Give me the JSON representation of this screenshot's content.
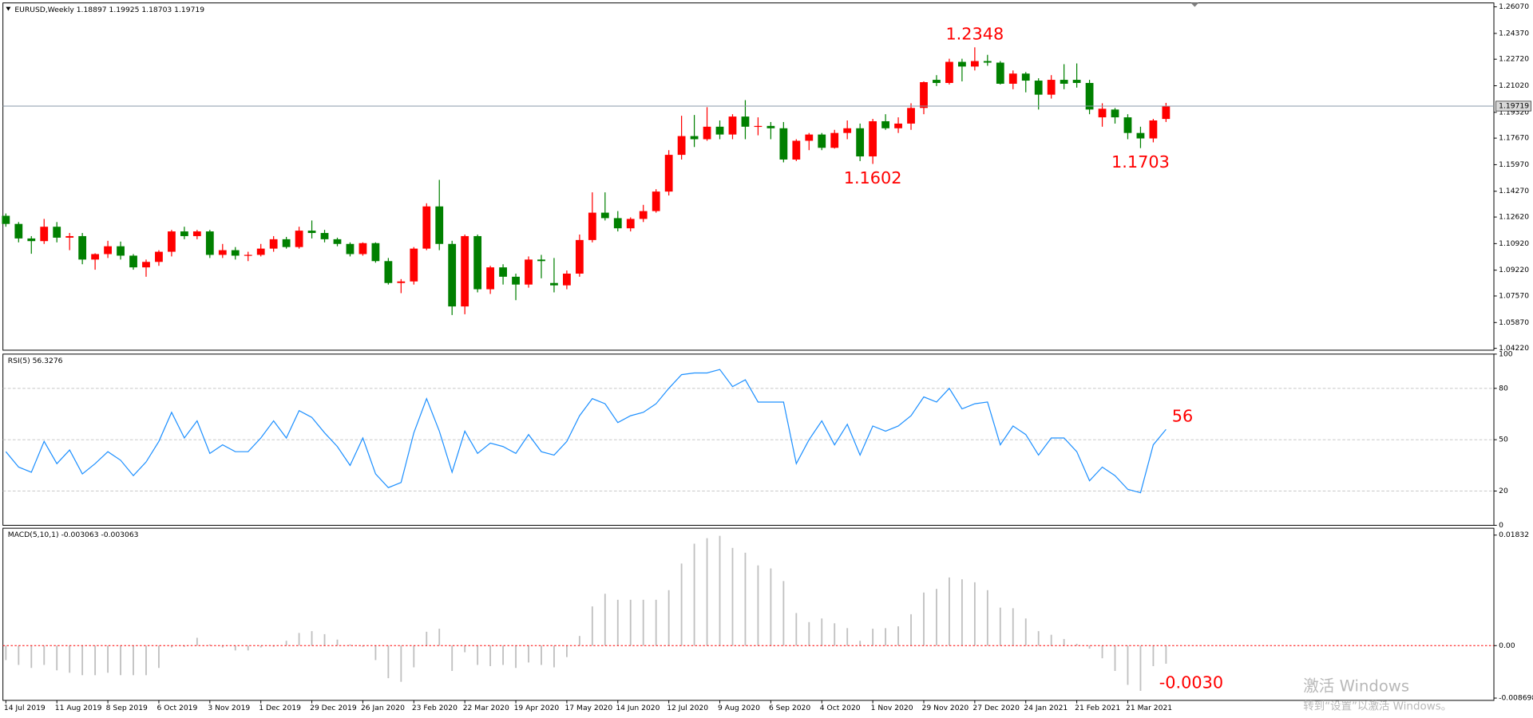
{
  "chart_data": [
    {
      "type": "candlestick",
      "title": "EURUSD,Weekly  1.18897 1.19925 1.18703 1.19719",
      "categories": [
        "14 Jul 2019",
        null,
        null,
        null,
        "11 Aug 2019",
        null,
        null,
        null,
        "8 Sep 2019",
        null,
        null,
        null,
        "6 Oct 2019",
        null,
        null,
        null,
        "3 Nov 2019",
        null,
        null,
        null,
        "1 Dec 2019",
        null,
        null,
        null,
        "29 Dec 2019",
        null,
        null,
        null,
        "26 Jan 2020",
        null,
        null,
        null,
        "23 Feb 2020",
        null,
        null,
        null,
        "22 Mar 2020",
        null,
        null,
        null,
        "19 Apr 2020",
        null,
        null,
        null,
        "17 May 2020",
        null,
        null,
        null,
        "14 Jun 2020",
        null,
        null,
        null,
        "12 Jul 2020",
        null,
        null,
        null,
        "9 Aug 2020",
        null,
        null,
        null,
        "6 Sep 2020",
        null,
        null,
        null,
        "4 Oct 2020",
        null,
        null,
        null,
        "1 Nov 2020",
        null,
        null,
        null,
        "29 Nov 2020",
        null,
        null,
        null,
        "27 Dec 2020",
        null,
        null,
        null,
        "24 Jan 2021",
        null,
        null,
        null,
        "21 Feb 2021",
        null,
        null,
        null,
        "21 Mar 2021",
        null,
        null,
        null
      ],
      "open": [
        1.127,
        1.1218,
        1.1125,
        1.1108,
        1.12,
        1.113,
        1.114,
        1.099,
        1.1025,
        1.1075,
        1.1015,
        1.094,
        1.0975,
        1.104,
        1.117,
        1.114,
        1.117,
        1.102,
        1.105,
        1.1015,
        1.102,
        1.106,
        1.112,
        1.107,
        1.1175,
        1.116,
        1.112,
        1.109,
        1.1025,
        1.1095,
        1.098,
        1.084,
        1.085,
        1.106,
        1.133,
        1.109,
        1.069,
        1.114,
        1.08,
        1.094,
        1.088,
        1.083,
        1.099,
        1.084,
        1.0825,
        1.09,
        1.1115,
        1.129,
        1.1255,
        1.119,
        1.125,
        1.13,
        1.1425,
        1.166,
        1.178,
        1.176,
        1.184,
        1.179,
        1.1905,
        1.184,
        1.1845,
        1.183,
        1.163,
        1.175,
        1.179,
        1.1705,
        1.18,
        1.183,
        1.165,
        1.1875,
        1.183,
        1.186,
        1.196,
        1.214,
        1.212,
        1.2255,
        1.2225,
        1.226,
        1.225,
        1.2115,
        1.218,
        1.2135,
        1.2045,
        1.214,
        1.214,
        1.212,
        1.19,
        1.195,
        1.19,
        1.18,
        1.1765,
        1.18897
      ],
      "high": [
        1.1285,
        1.123,
        1.114,
        1.125,
        1.123,
        1.116,
        1.116,
        1.103,
        1.111,
        1.1105,
        1.1025,
        1.099,
        1.105,
        1.118,
        1.12,
        1.118,
        1.118,
        1.109,
        1.107,
        1.104,
        1.109,
        1.114,
        1.1135,
        1.12,
        1.124,
        1.118,
        1.113,
        1.11,
        1.11,
        1.11,
        1.1,
        1.0865,
        1.107,
        1.135,
        1.15,
        1.111,
        1.115,
        1.115,
        1.095,
        1.096,
        1.09,
        1.101,
        1.102,
        1.1,
        1.092,
        1.115,
        1.142,
        1.142,
        1.13,
        1.126,
        1.134,
        1.144,
        1.169,
        1.191,
        1.1915,
        1.1965,
        1.188,
        1.192,
        1.201,
        1.19,
        1.187,
        1.187,
        1.176,
        1.18,
        1.18,
        1.182,
        1.188,
        1.186,
        1.189,
        1.192,
        1.19,
        1.199,
        1.213,
        1.217,
        1.2275,
        1.2275,
        1.2348,
        1.23,
        1.226,
        1.22,
        1.219,
        1.215,
        1.217,
        1.224,
        1.2245,
        1.214,
        1.199,
        1.196,
        1.192,
        1.184,
        1.189,
        1.19925
      ],
      "low": [
        1.12,
        1.11,
        1.1027,
        1.109,
        1.11,
        1.105,
        1.096,
        1.0925,
        1.1,
        1.099,
        1.0925,
        1.088,
        1.095,
        1.101,
        1.112,
        1.112,
        1.1,
        1.1,
        1.099,
        1.098,
        1.101,
        1.104,
        1.106,
        1.106,
        1.1125,
        1.11,
        1.1075,
        1.101,
        1.1015,
        1.097,
        1.083,
        1.0775,
        1.083,
        1.105,
        1.105,
        1.0635,
        1.064,
        1.078,
        1.077,
        1.083,
        1.073,
        1.081,
        1.087,
        1.078,
        1.08,
        1.088,
        1.11,
        1.124,
        1.117,
        1.117,
        1.123,
        1.129,
        1.14,
        1.163,
        1.171,
        1.175,
        1.176,
        1.176,
        1.176,
        1.1785,
        1.176,
        1.1612,
        1.162,
        1.169,
        1.169,
        1.17,
        1.176,
        1.162,
        1.1602,
        1.182,
        1.18,
        1.182,
        1.192,
        1.21,
        1.211,
        1.213,
        1.22,
        1.223,
        1.211,
        1.208,
        1.206,
        1.195,
        1.202,
        1.208,
        1.209,
        1.192,
        1.184,
        1.186,
        1.176,
        1.1703,
        1.174,
        1.18703
      ],
      "close": [
        1.1218,
        1.1125,
        1.1108,
        1.12,
        1.113,
        1.114,
        1.099,
        1.1025,
        1.1075,
        1.1015,
        1.094,
        1.0975,
        1.104,
        1.117,
        1.114,
        1.117,
        1.102,
        1.105,
        1.1015,
        1.102,
        1.106,
        1.112,
        1.107,
        1.1175,
        1.116,
        1.112,
        1.109,
        1.1025,
        1.1095,
        1.098,
        1.084,
        1.085,
        1.106,
        1.133,
        1.109,
        1.069,
        1.114,
        1.08,
        1.094,
        1.088,
        1.083,
        1.099,
        1.098,
        1.0825,
        1.09,
        1.1115,
        1.129,
        1.1255,
        1.119,
        1.125,
        1.13,
        1.1425,
        1.166,
        1.178,
        1.176,
        1.184,
        1.179,
        1.1905,
        1.184,
        1.1845,
        1.183,
        1.163,
        1.175,
        1.179,
        1.1705,
        1.18,
        1.183,
        1.165,
        1.1875,
        1.183,
        1.186,
        1.196,
        1.2125,
        1.212,
        1.2255,
        1.2225,
        1.226,
        1.225,
        1.2115,
        1.218,
        1.2135,
        1.2045,
        1.214,
        1.2115,
        1.212,
        1.195,
        1.1955,
        1.19,
        1.18,
        1.1765,
        1.188,
        1.19719
      ],
      "up_color": "#ff0000",
      "down_color": "#008000",
      "last_price_label": "1.19719",
      "ylim": [
        1.041,
        1.2632
      ],
      "yticks": [
        {
          "value": 1.2607,
          "label": "1.26070"
        },
        {
          "value": 1.2437,
          "label": "1.24370"
        },
        {
          "value": 1.2272,
          "label": "1.22720"
        },
        {
          "value": 1.2102,
          "label": "1.21020"
        },
        {
          "value": 1.1932,
          "label": "1.19320"
        },
        {
          "value": 1.1767,
          "label": "1.17670"
        },
        {
          "value": 1.1597,
          "label": "1.15970"
        },
        {
          "value": 1.1427,
          "label": "1.14270"
        },
        {
          "value": 1.1262,
          "label": "1.12620"
        },
        {
          "value": 1.1092,
          "label": "1.10920"
        },
        {
          "value": 1.0922,
          "label": "1.09220"
        },
        {
          "value": 1.0757,
          "label": "1.07570"
        },
        {
          "value": 1.0587,
          "label": "1.05870"
        },
        {
          "value": 1.0422,
          "label": "1.04220"
        }
      ],
      "annotations": [
        {
          "text": "1.2348",
          "value": 1.2348
        },
        {
          "text": "1.1602",
          "value": 1.1602
        },
        {
          "text": "1.1703",
          "value": 1.1703
        }
      ]
    },
    {
      "type": "line",
      "title": "RSI(5) 56.3276",
      "color": "#1e90ff",
      "values": [
        43,
        34,
        31,
        49,
        36,
        44,
        30,
        36,
        43,
        38,
        29,
        37,
        49,
        66,
        51,
        61,
        42,
        47,
        43,
        43,
        51,
        61,
        51,
        67,
        63,
        54,
        46,
        35,
        51,
        30,
        22,
        25,
        54,
        74,
        55,
        31,
        55,
        42,
        48,
        46,
        42,
        53,
        43,
        41,
        49,
        64,
        74,
        71,
        60,
        64,
        66,
        71,
        80,
        88,
        89,
        89,
        91,
        81,
        85,
        72,
        72,
        72,
        36,
        50,
        61,
        47,
        59,
        41,
        58,
        55,
        58,
        64,
        75,
        72,
        80,
        68,
        71,
        72,
        47,
        58,
        53,
        41,
        51,
        51,
        43,
        26,
        34,
        29,
        21,
        19,
        47,
        56
      ],
      "ylim": [
        0,
        100
      ],
      "yticks": [
        0,
        20,
        50,
        80,
        100
      ],
      "annotation": "56"
    },
    {
      "type": "bar",
      "title": "MACD(5,10,1) -0.003063 -0.003063",
      "color": "#c0c0c0",
      "values": [
        -0.0024,
        -0.0032,
        -0.0037,
        -0.0032,
        -0.0041,
        -0.0045,
        -0.0049,
        -0.0049,
        -0.0045,
        -0.0049,
        -0.0049,
        -0.0049,
        -0.0037,
        -0.0003,
        -0.0002,
        0.0013,
        0.0002,
        -0.0003,
        -0.0008,
        -0.0008,
        -0.0003,
        -0.0002,
        0.0008,
        0.0021,
        0.0024,
        0.0019,
        0.001,
        0.0002,
        -0.0002,
        -0.0024,
        -0.0054,
        -0.006,
        -0.0036,
        0.0023,
        0.0028,
        -0.0042,
        -0.0011,
        -0.0032,
        -0.0034,
        -0.0032,
        -0.0037,
        -0.0028,
        -0.0032,
        -0.0036,
        -0.0019,
        0.0016,
        0.0065,
        0.0086,
        0.0076,
        0.0076,
        0.0076,
        0.0076,
        0.0092,
        0.0136,
        0.0169,
        0.0178,
        0.0182,
        0.0162,
        0.0154,
        0.0133,
        0.0128,
        0.0107,
        0.0054,
        0.0039,
        0.0045,
        0.0037,
        0.0029,
        0.0008,
        0.0028,
        0.0029,
        0.0032,
        0.0052,
        0.0088,
        0.0094,
        0.0113,
        0.011,
        0.0105,
        0.0092,
        0.0063,
        0.0062,
        0.0045,
        0.0024,
        0.0018,
        0.0011,
        0.0003,
        -0.0005,
        -0.0021,
        -0.0042,
        -0.0065,
        -0.0075,
        -0.0034,
        -0.003
      ],
      "zero_line_color": "#ff0000",
      "ylim": [
        -0.00908,
        0.01946
      ],
      "yticks": [
        0.01832,
        {
          "value": 0,
          "label": "0.00"
        },
        -0.008698
      ],
      "annotation": "-0.0030"
    }
  ],
  "watermark": [
    "激活 Windows",
    "转到“设置”以激活 Windows。"
  ]
}
